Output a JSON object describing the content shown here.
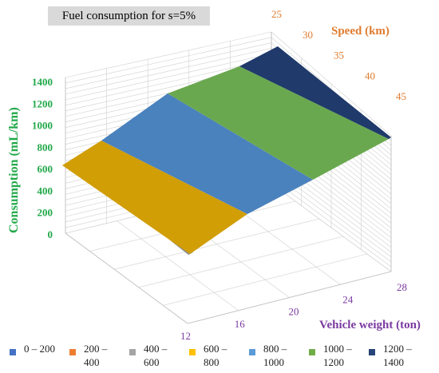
{
  "chart_data": {
    "type": "surface",
    "title": "Fuel consumption for s=5%",
    "zlabel": "Consumption (mL/km)",
    "ylabel": "Speed (km)",
    "xlabel": "Vehicle weight (ton)",
    "z_ticks": [
      "0",
      "200",
      "400",
      "600",
      "800",
      "1000",
      "1200",
      "1400"
    ],
    "z_range": [
      0,
      1400
    ],
    "speed_ticks": [
      "25",
      "30",
      "35",
      "40",
      "45"
    ],
    "weight_ticks": [
      "12",
      "16",
      "20",
      "24",
      "28"
    ],
    "legend": [
      {
        "label": "0 – 200",
        "color": "#4472c4"
      },
      {
        "label": "200 – 400",
        "color": "#ed7d31"
      },
      {
        "label": "400 – 600",
        "color": "#a5a5a5"
      },
      {
        "label": "600 – 800",
        "color": "#ffc000"
      },
      {
        "label": "800 – 1000",
        "color": "#5b9bd5"
      },
      {
        "label": "1000 – 1200",
        "color": "#70ad47"
      },
      {
        "label": "1200 – 1400",
        "color": "#264478"
      }
    ],
    "corner_values": {
      "weight_12_speed_25": 650,
      "weight_12_speed_45": 30,
      "weight_28_speed_25": 1400,
      "weight_28_speed_45": 960
    },
    "grid": true,
    "legend_position": "bottom"
  },
  "colors": {
    "band_gold": "#d19e06",
    "band_blue": "#4a82bd",
    "band_green": "#6aa84f",
    "band_navy": "#1f3a6b",
    "band_gray": "#8c8c8c"
  }
}
